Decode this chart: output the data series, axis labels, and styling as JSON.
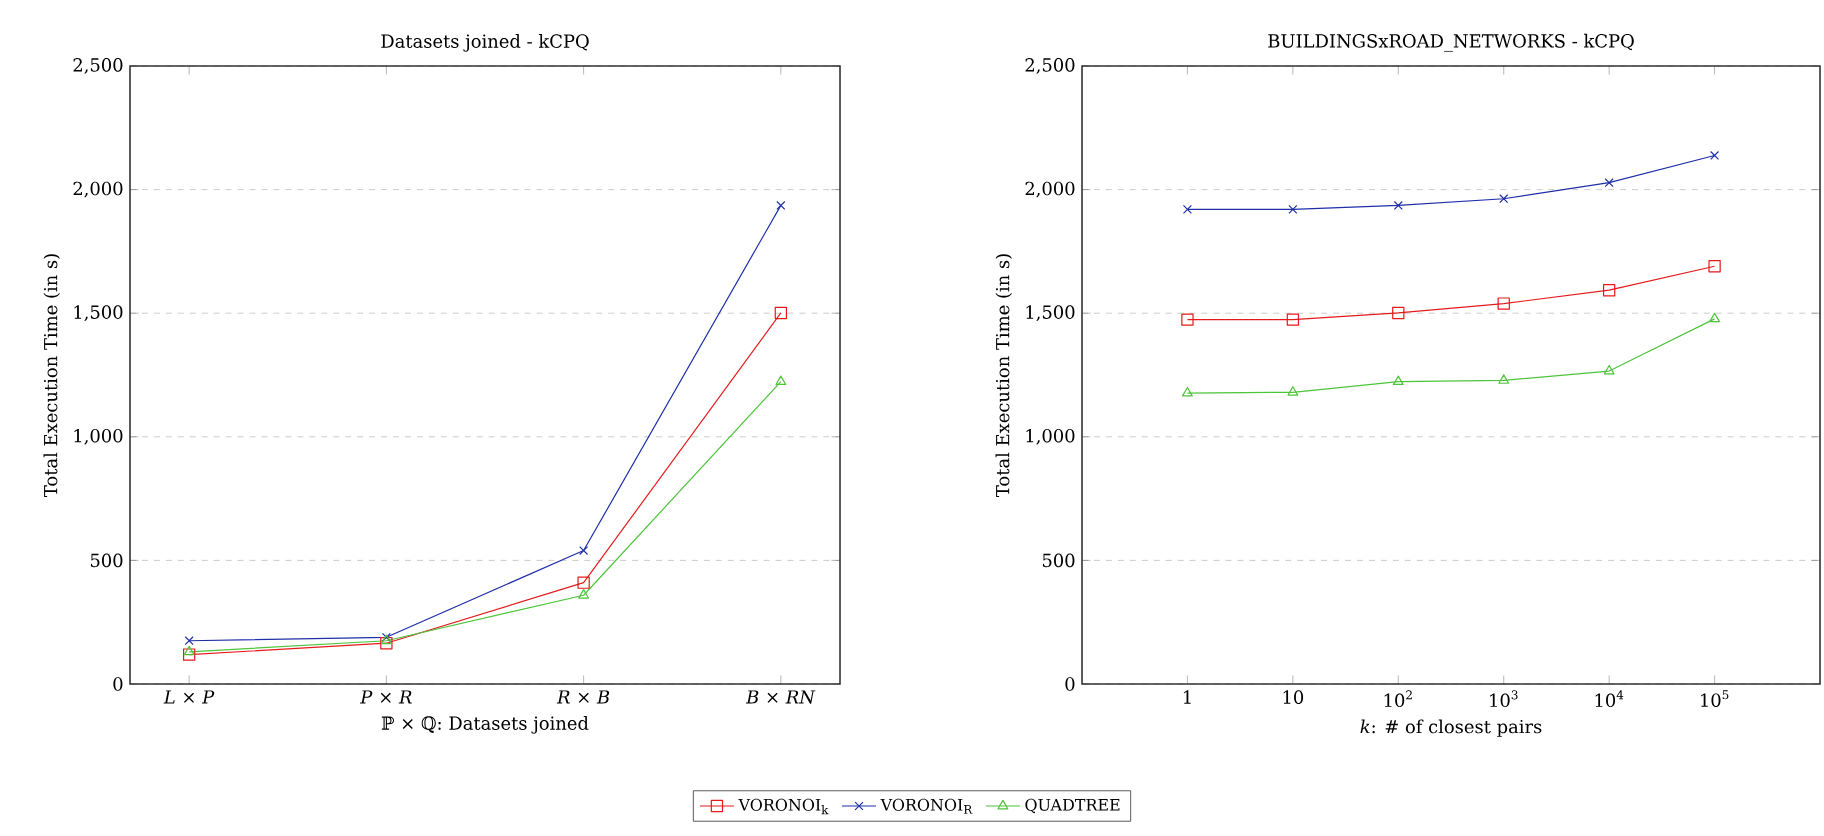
{
  "chart_data": [
    {
      "type": "line",
      "title": "Datasets joined - kCPQ",
      "xlabel": "ℙ × ℚ: Datasets joined",
      "ylabel": "Total Execution Time (in s)",
      "categories": [
        "*L* × *P*",
        "*P* × *R*",
        "*R* × *B*",
        "*B* × *RN*"
      ],
      "ylim": [
        0,
        2500
      ],
      "yticks": [
        0,
        500,
        {
          "value": 1000,
          "label": "1,000"
        },
        {
          "value": 1500,
          "label": "1,500"
        },
        {
          "value": 2000,
          "label": "2,000"
        },
        {
          "value": 2500,
          "label": "2,500"
        }
      ],
      "grid": "y",
      "legend": "bottom",
      "series": [
        {
          "name": "VORONOI$_{k}$",
          "color": "#e41a1c",
          "marker": "square",
          "values": [
            119,
            165,
            410,
            1501
          ]
        },
        {
          "name": "VORONOI$_{R}$",
          "color": "#1f2fa8",
          "marker": "cross",
          "values": [
            175,
            189,
            540,
            1936
          ]
        },
        {
          "name": "QUADTREE",
          "color": "#4dc43a",
          "marker": "triangle",
          "values": [
            130,
            175,
            359,
            1223
          ]
        }
      ]
    },
    {
      "type": "line",
      "title": "BUILDINGSxROAD_NETWORKS - kCPQ",
      "xlabel": "*k*: # of closest pairs",
      "ylabel": "Total Execution Time (in s)",
      "categories": [
        "1",
        "10",
        "10$^{2}$",
        "10$^{3}$",
        "10$^{4}$",
        "10$^{5}$"
      ],
      "ylim": [
        0,
        2500
      ],
      "yticks": [
        0,
        500,
        {
          "value": 1000,
          "label": "1,000"
        },
        {
          "value": 1500,
          "label": "1,500"
        },
        {
          "value": 2000,
          "label": "2,000"
        },
        {
          "value": 2500,
          "label": "2,500"
        }
      ],
      "grid": "y",
      "series": [
        {
          "color": "#e41a1c",
          "marker": "square",
          "values": [
            1474,
            1474,
            1501,
            1539,
            1593,
            1690
          ]
        },
        {
          "color": "#1f2fa8",
          "marker": "cross",
          "values": [
            1920,
            1920,
            1936,
            1963,
            2028,
            2138
          ]
        },
        {
          "color": "#4dc43a",
          "marker": "triangle",
          "values": [
            1177,
            1180,
            1223,
            1228,
            1266,
            1477
          ]
        }
      ]
    }
  ]
}
